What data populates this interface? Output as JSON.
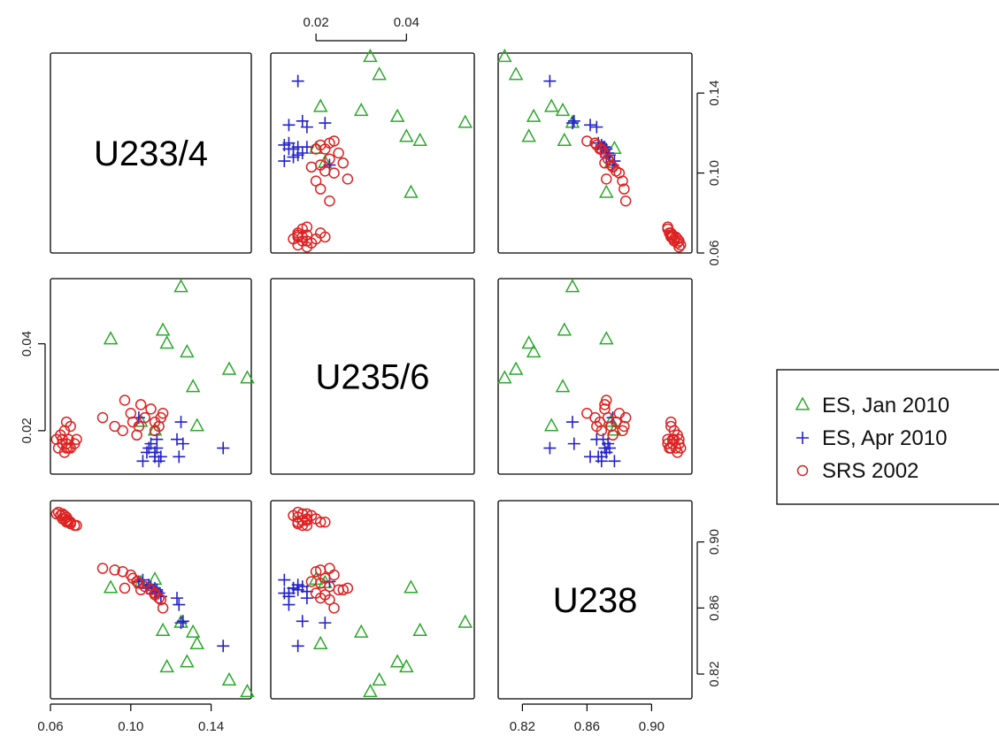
{
  "chart_data": {
    "type": "scatter",
    "variables": [
      "U233/4",
      "U235/6",
      "U238"
    ],
    "ranges": {
      "U233/4": [
        0.06,
        0.16
      ],
      "U235/6": [
        0.01,
        0.055
      ],
      "U238": [
        0.805,
        0.925
      ]
    },
    "ticks": {
      "U233/4": {
        "values": [
          0.06,
          0.1,
          0.14
        ],
        "labels": [
          "0.06",
          "0.10",
          "0.14"
        ]
      },
      "U235/6": {
        "values": [
          0.02,
          0.04
        ],
        "labels": [
          "0.02",
          "0.04"
        ]
      },
      "U238": {
        "values": [
          0.82,
          0.86,
          0.9
        ],
        "labels": [
          "0.82",
          "0.86",
          "0.90"
        ]
      }
    },
    "legend_position": "right",
    "grid": false,
    "series": [
      {
        "name": "ES, Jan 2010",
        "marker": "triangle",
        "color": "#2ea82e",
        "points": [
          [
            0.158,
            0.032,
            0.809
          ],
          [
            0.149,
            0.034,
            0.816
          ],
          [
            0.128,
            0.038,
            0.827
          ],
          [
            0.118,
            0.04,
            0.824
          ],
          [
            0.133,
            0.021,
            0.838
          ],
          [
            0.131,
            0.03,
            0.845
          ],
          [
            0.125,
            0.053,
            0.851
          ],
          [
            0.116,
            0.043,
            0.846
          ],
          [
            0.09,
            0.041,
            0.872
          ],
          [
            0.105,
            0.022,
            0.875
          ],
          [
            0.112,
            0.02,
            0.877
          ]
        ]
      },
      {
        "name": "ES, Apr 2010",
        "marker": "plus",
        "color": "#2222c8",
        "points": [
          [
            0.146,
            0.016,
            0.837
          ],
          [
            0.126,
            0.017,
            0.852
          ],
          [
            0.124,
            0.014,
            0.862
          ],
          [
            0.123,
            0.018,
            0.866
          ],
          [
            0.125,
            0.022,
            0.851
          ],
          [
            0.115,
            0.014,
            0.867
          ],
          [
            0.113,
            0.016,
            0.871
          ],
          [
            0.112,
            0.015,
            0.872
          ],
          [
            0.11,
            0.017,
            0.873
          ],
          [
            0.114,
            0.013,
            0.869
          ],
          [
            0.109,
            0.016,
            0.874
          ],
          [
            0.104,
            0.023,
            0.876
          ],
          [
            0.108,
            0.015,
            0.872
          ],
          [
            0.106,
            0.013,
            0.877
          ],
          [
            0.113,
            0.018,
            0.87
          ],
          [
            0.112,
            0.014,
            0.869
          ]
        ]
      },
      {
        "name": "SRS 2002",
        "marker": "circle",
        "color": "#dd2222",
        "points": [
          [
            0.064,
            0.016,
            0.918
          ],
          [
            0.066,
            0.017,
            0.917
          ],
          [
            0.067,
            0.015,
            0.916
          ],
          [
            0.068,
            0.016,
            0.915
          ],
          [
            0.066,
            0.018,
            0.914
          ],
          [
            0.068,
            0.017,
            0.913
          ],
          [
            0.069,
            0.016,
            0.912
          ],
          [
            0.065,
            0.019,
            0.916
          ],
          [
            0.07,
            0.016,
            0.911
          ],
          [
            0.063,
            0.018,
            0.917
          ],
          [
            0.067,
            0.02,
            0.914
          ],
          [
            0.069,
            0.018,
            0.913
          ],
          [
            0.07,
            0.021,
            0.912
          ],
          [
            0.072,
            0.017,
            0.91
          ],
          [
            0.073,
            0.018,
            0.91
          ],
          [
            0.068,
            0.022,
            0.912
          ],
          [
            0.086,
            0.023,
            0.884
          ],
          [
            0.092,
            0.021,
            0.883
          ],
          [
            0.096,
            0.02,
            0.882
          ],
          [
            0.1,
            0.024,
            0.88
          ],
          [
            0.101,
            0.022,
            0.878
          ],
          [
            0.103,
            0.019,
            0.876
          ],
          [
            0.104,
            0.021,
            0.875
          ],
          [
            0.107,
            0.023,
            0.873
          ],
          [
            0.11,
            0.025,
            0.871
          ],
          [
            0.112,
            0.02,
            0.869
          ],
          [
            0.114,
            0.021,
            0.866
          ],
          [
            0.115,
            0.023,
            0.865
          ],
          [
            0.097,
            0.027,
            0.872
          ],
          [
            0.105,
            0.026,
            0.871
          ],
          [
            0.112,
            0.022,
            0.868
          ],
          [
            0.116,
            0.024,
            0.86
          ]
        ]
      }
    ]
  }
}
